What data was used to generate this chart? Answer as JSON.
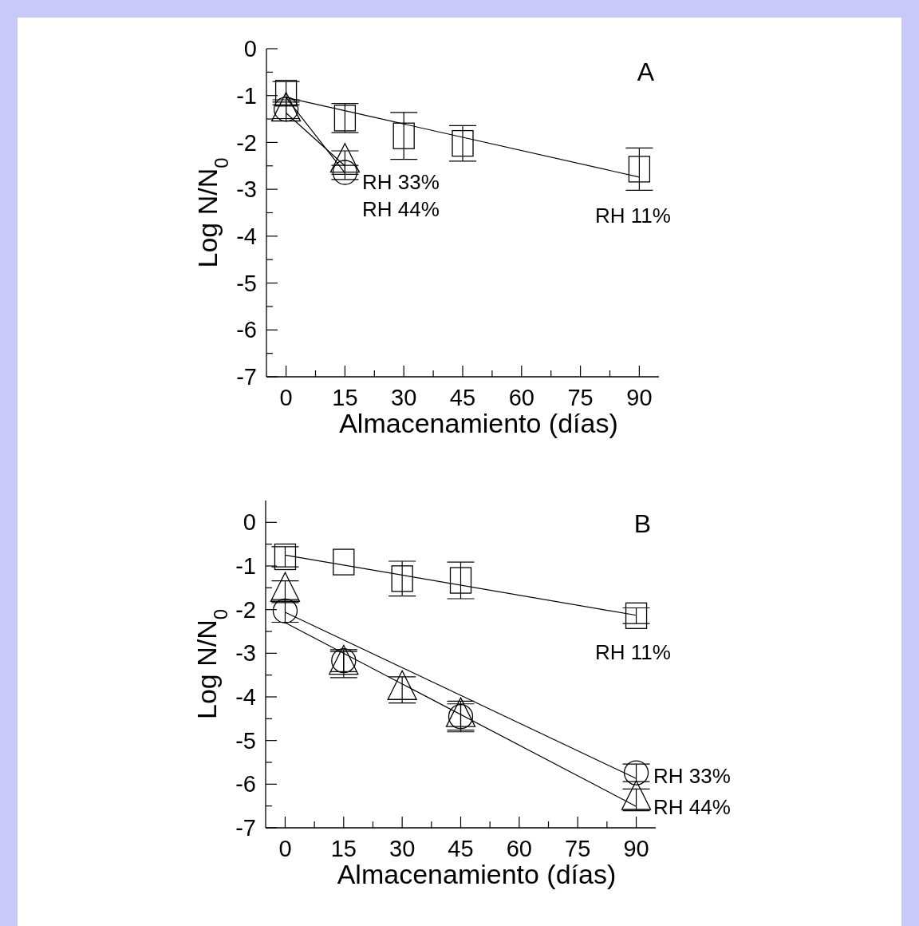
{
  "chart_data": [
    {
      "type": "scatter",
      "title": "A",
      "xlabel": "Almacenamiento (días)",
      "ylabel": "Log N/N$_{0}$",
      "xlim": [
        -5,
        95
      ],
      "ylim": [
        -7,
        0
      ],
      "xticks": [
        0,
        {
          "value": 7.5,
          "label": null
        },
        15,
        {
          "value": 22.5,
          "label": null
        },
        30,
        {
          "value": 37.5,
          "label": null
        },
        45,
        {
          "value": 52.5,
          "label": null
        },
        60,
        {
          "value": 67.5,
          "label": null
        },
        75,
        {
          "value": 82.5,
          "label": null
        },
        90
      ],
      "yticks": [
        0,
        {
          "value": -0.5,
          "label": null
        },
        -1,
        {
          "value": -1.5,
          "label": null
        },
        -2,
        {
          "value": -2.5,
          "label": null
        },
        -3,
        {
          "value": -3.5,
          "label": null
        },
        -4,
        {
          "value": -4.5,
          "label": null
        },
        -5,
        {
          "value": -5.5,
          "label": null
        },
        -6,
        {
          "value": -6.5,
          "label": null
        },
        -7
      ],
      "grid": false,
      "series": [
        {
          "type": "line",
          "color": "#000000",
          "x": [
            0,
            90
          ],
          "values": [
            -1.04,
            -2.74
          ]
        },
        {
          "type": "line",
          "color": "#000000",
          "x": [
            0,
            15
          ],
          "values": [
            -1.04,
            -2.65
          ]
        },
        {
          "type": "line",
          "color": "#000000",
          "x": [
            0,
            15
          ],
          "values": [
            -1.37,
            -2.5
          ]
        },
        {
          "color": "#000000",
          "marker": "square",
          "x": [
            0,
            15,
            30,
            45,
            90
          ],
          "values": [
            -0.95,
            -1.48,
            -1.86,
            -2.02,
            -2.57
          ],
          "errors": [
            0.25,
            0.31,
            0.5,
            0.38,
            0.45
          ]
        },
        {
          "color": "#000000",
          "marker": "circle",
          "x": [
            0,
            15
          ],
          "values": [
            -1.29,
            -2.64
          ],
          "errors": [
            0.2,
            0.15
          ]
        },
        {
          "color": "#000000",
          "marker": "triangle",
          "x": [
            0,
            15
          ],
          "values": [
            -1.34,
            -2.43
          ],
          "errors": [
            0.2,
            0.25
          ]
        }
      ],
      "annotations": [
        "RH 33%",
        "RH 44%",
        "RH 11%"
      ]
    },
    {
      "type": "scatter",
      "title": "B",
      "xlabel": "Almacenamiento (días)",
      "ylabel": "Log N/N$_{0}$",
      "xlim": [
        -5,
        95
      ],
      "ylim": [
        -7,
        0.5
      ],
      "xticks": [
        0,
        {
          "value": 7.5,
          "label": null
        },
        15,
        {
          "value": 22.5,
          "label": null
        },
        30,
        {
          "value": 37.5,
          "label": null
        },
        45,
        {
          "value": 52.5,
          "label": null
        },
        60,
        {
          "value": 67.5,
          "label": null
        },
        75,
        {
          "value": 82.5,
          "label": null
        },
        90
      ],
      "yticks": [
        0,
        {
          "value": -0.5,
          "label": null
        },
        -1,
        {
          "value": -1.5,
          "label": null
        },
        -2,
        {
          "value": -2.5,
          "label": null
        },
        -3,
        {
          "value": -3.5,
          "label": null
        },
        -4,
        {
          "value": -4.5,
          "label": null
        },
        -5,
        {
          "value": -5.5,
          "label": null
        },
        -6,
        {
          "value": -6.5,
          "label": null
        },
        -7
      ],
      "grid": false,
      "series": [
        {
          "type": "line",
          "color": "#000000",
          "x": [
            0,
            90
          ],
          "values": [
            -0.75,
            -2.13
          ]
        },
        {
          "type": "line",
          "color": "#000000",
          "x": [
            0,
            90
          ],
          "values": [
            -2.06,
            -5.87
          ]
        },
        {
          "type": "line",
          "color": "#000000",
          "x": [
            0,
            90
          ],
          "values": [
            -2.3,
            -6.51
          ]
        },
        {
          "color": "#000000",
          "marker": "square",
          "x": [
            0,
            15,
            30,
            45,
            90
          ],
          "values": [
            -0.79,
            -0.91,
            -1.29,
            -1.33,
            -2.14
          ],
          "errors": [
            0.23,
            null,
            0.4,
            0.42,
            0.18
          ]
        },
        {
          "color": "#000000",
          "marker": "circle",
          "x": [
            0,
            15,
            45,
            90
          ],
          "values": [
            -2.03,
            -3.17,
            -4.45,
            -5.74
          ],
          "errors": [
            0.26,
            0.25,
            0.35,
            0.2
          ]
        },
        {
          "color": "#000000",
          "marker": "triangle",
          "x": [
            0,
            15,
            30,
            45,
            90
          ],
          "values": [
            -1.59,
            -3.26,
            -3.84,
            -4.46,
            -6.36
          ],
          "errors": [
            0.25,
            0.3,
            0.3,
            0.3,
            0.25
          ]
        }
      ],
      "annotations": [
        "RH 11%",
        "RH 33%",
        "RH 44%"
      ]
    }
  ]
}
